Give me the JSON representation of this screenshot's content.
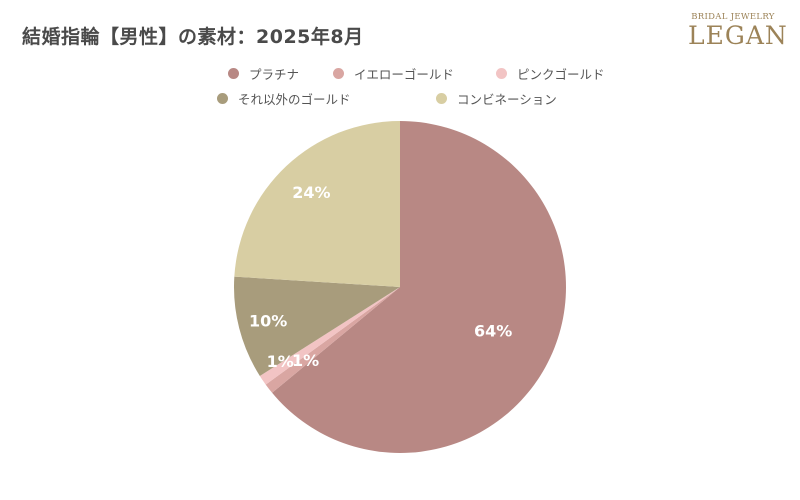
{
  "header": {
    "title": "結婚指輪【男性】の素材：2025年8月"
  },
  "logo": {
    "tagline": "BRIDAL JEWELRY",
    "brand": "LEGAN"
  },
  "chart_data": {
    "type": "pie",
    "title": "結婚指輪【男性】の素材：2025年8月",
    "unit": "%",
    "legend_position": "top",
    "start_angle_deg": 0,
    "direction": "clockwise",
    "categories": [
      "プラチナ",
      "イエローゴールド",
      "ピンクゴールド",
      "それ以外のゴールド",
      "コンビネーション"
    ],
    "values": [
      64,
      1,
      1,
      10,
      24
    ],
    "labels": [
      "64%",
      "1%",
      "1%",
      "10%",
      "24%"
    ],
    "colors": [
      "#b88884",
      "#d9a6a2",
      "#f2c4c4",
      "#a89c7c",
      "#d8cea3"
    ]
  }
}
